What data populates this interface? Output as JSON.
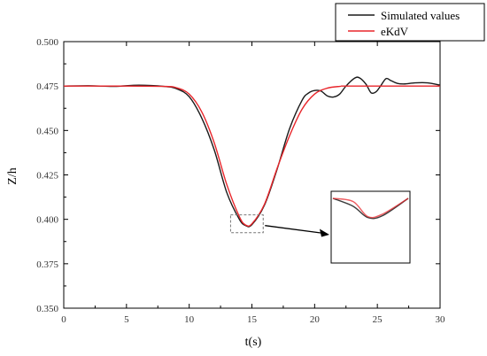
{
  "chart_data": {
    "type": "line",
    "title": "",
    "xlabel": "t(s)",
    "ylabel": "Z/h",
    "xlim": [
      0,
      30
    ],
    "ylim": [
      0.35,
      0.5
    ],
    "x_ticks": [
      0,
      5,
      10,
      15,
      20,
      25,
      30
    ],
    "y_ticks": [
      0.35,
      0.375,
      0.4,
      0.425,
      0.45,
      0.475,
      0.5
    ],
    "x_tick_labels": [
      "0",
      "5",
      "10",
      "15",
      "20",
      "25",
      "30"
    ],
    "y_tick_labels": [
      "0.350",
      "0.375",
      "0.400",
      "0.425",
      "0.450",
      "0.475",
      "0.500"
    ],
    "grid": false,
    "legend_position": "top-right",
    "series": [
      {
        "name": "Simulated values",
        "color": "#1a1a1a",
        "points": [
          [
            0,
            0.475
          ],
          [
            2,
            0.4752
          ],
          [
            4,
            0.4748
          ],
          [
            6,
            0.4755
          ],
          [
            8,
            0.4748
          ],
          [
            9,
            0.4735
          ],
          [
            10,
            0.469
          ],
          [
            11,
            0.457
          ],
          [
            12,
            0.439
          ],
          [
            13,
            0.415
          ],
          [
            14,
            0.4
          ],
          [
            14.5,
            0.3965
          ],
          [
            15,
            0.397
          ],
          [
            16,
            0.408
          ],
          [
            17,
            0.428
          ],
          [
            18,
            0.451
          ],
          [
            19,
            0.467
          ],
          [
            19.5,
            0.471
          ],
          [
            20,
            0.4725
          ],
          [
            20.5,
            0.4722
          ],
          [
            21,
            0.4695
          ],
          [
            21.5,
            0.4688
          ],
          [
            22,
            0.4705
          ],
          [
            22.5,
            0.475
          ],
          [
            23.2,
            0.4795
          ],
          [
            23.6,
            0.4795
          ],
          [
            24.1,
            0.476
          ],
          [
            24.5,
            0.4712
          ],
          [
            24.9,
            0.4718
          ],
          [
            25.3,
            0.4755
          ],
          [
            25.7,
            0.4792
          ],
          [
            26.1,
            0.478
          ],
          [
            26.6,
            0.4765
          ],
          [
            27.2,
            0.4762
          ],
          [
            28,
            0.4768
          ],
          [
            29,
            0.4768
          ],
          [
            30,
            0.4755
          ]
        ]
      },
      {
        "name": "eKdV",
        "color": "#e8262b",
        "points": [
          [
            0,
            0.475
          ],
          [
            4,
            0.475
          ],
          [
            8,
            0.4748
          ],
          [
            9,
            0.474
          ],
          [
            10,
            0.4705
          ],
          [
            11,
            0.4605
          ],
          [
            12,
            0.443
          ],
          [
            13,
            0.4195
          ],
          [
            14,
            0.4015
          ],
          [
            14.5,
            0.3968
          ],
          [
            15,
            0.3975
          ],
          [
            16,
            0.4085
          ],
          [
            17,
            0.4285
          ],
          [
            18,
            0.447
          ],
          [
            19,
            0.462
          ],
          [
            20,
            0.4705
          ],
          [
            21,
            0.4738
          ],
          [
            22,
            0.4748
          ],
          [
            23,
            0.475
          ],
          [
            30,
            0.475
          ]
        ]
      }
    ],
    "zoom_inset": {
      "source_x": [
        13.3,
        15.9
      ],
      "source_y": [
        0.3925,
        0.4025
      ]
    }
  }
}
